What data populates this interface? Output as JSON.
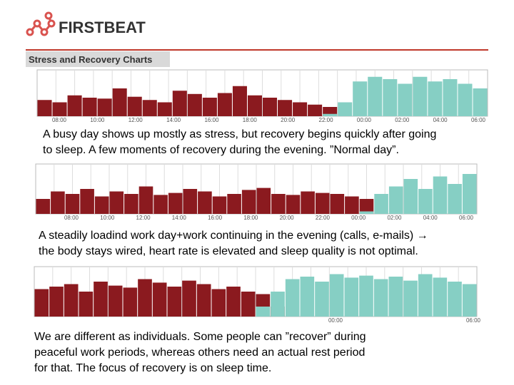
{
  "header": {
    "logo": "FIRSTBEAT",
    "banner": "Stress and Recovery Charts"
  },
  "chart_data": [
    {
      "type": "bar",
      "ylim": [
        0,
        100
      ],
      "xtick_labels": [
        "08:00",
        "10:00",
        "12:00",
        "14:00",
        "16:00",
        "18:00",
        "20:00",
        "22:00",
        "00:00",
        "02:00",
        "04:00",
        "06:00"
      ],
      "series": [
        {
          "name": "stress",
          "color": "#8b1a1f",
          "values": [
            35,
            30,
            45,
            40,
            38,
            60,
            42,
            35,
            30,
            55,
            48,
            40,
            50,
            65,
            45,
            40,
            35,
            30,
            25,
            20,
            0,
            0,
            0,
            0,
            0,
            0,
            0,
            0,
            0,
            0
          ]
        },
        {
          "name": "recovery",
          "color": "#86cfc4",
          "values": [
            0,
            0,
            0,
            0,
            0,
            0,
            0,
            0,
            0,
            0,
            0,
            0,
            0,
            0,
            0,
            0,
            0,
            0,
            0,
            5,
            30,
            75,
            85,
            80,
            70,
            85,
            75,
            80,
            70,
            60
          ]
        }
      ]
    },
    {
      "type": "bar",
      "ylim": [
        0,
        100
      ],
      "xtick_labels": [
        "08:00",
        "10:00",
        "12:00",
        "14:00",
        "16:00",
        "18:00",
        "20:00",
        "22:00",
        "00:00",
        "02:00",
        "04:00",
        "06:00"
      ],
      "series": [
        {
          "name": "stress",
          "color": "#8b1a1f",
          "values": [
            30,
            45,
            40,
            50,
            35,
            45,
            40,
            55,
            38,
            42,
            50,
            45,
            35,
            40,
            48,
            52,
            40,
            38,
            45,
            42,
            40,
            35,
            30,
            0,
            0,
            0,
            0,
            0,
            0,
            0
          ]
        },
        {
          "name": "recovery",
          "color": "#86cfc4",
          "values": [
            0,
            0,
            0,
            0,
            0,
            0,
            0,
            0,
            0,
            0,
            0,
            0,
            0,
            0,
            0,
            0,
            0,
            0,
            0,
            0,
            0,
            0,
            5,
            40,
            55,
            70,
            50,
            75,
            60,
            80
          ]
        }
      ]
    },
    {
      "type": "bar",
      "ylim": [
        0,
        100
      ],
      "xtick_labels": [
        "00:00",
        "06:00"
      ],
      "series": [
        {
          "name": "stress",
          "color": "#8b1a1f",
          "values": [
            55,
            60,
            65,
            50,
            70,
            62,
            58,
            75,
            68,
            60,
            72,
            65,
            55,
            60,
            50,
            45,
            20,
            0,
            0,
            0,
            0,
            0,
            0,
            0,
            0,
            0,
            0,
            0,
            0,
            0
          ]
        },
        {
          "name": "recovery",
          "color": "#86cfc4",
          "values": [
            0,
            0,
            0,
            0,
            0,
            0,
            0,
            0,
            0,
            0,
            0,
            0,
            0,
            0,
            0,
            20,
            50,
            75,
            80,
            70,
            85,
            78,
            82,
            75,
            80,
            72,
            85,
            78,
            70,
            65
          ]
        }
      ]
    }
  ],
  "captions": [
    [
      "A busy day shows up mostly as stress, but recovery begins quickly after going",
      "to sleep. A few moments of recovery during the evening. ”Normal day”."
    ],
    [
      "A steadily loadind work day+work continuing in the evening (calls, e-mails) → ",
      "the body stays wired, heart rate is elevated and sleep quality is not optimal."
    ],
    [
      "We are different as individuals. Some people can ”recover” during",
      "peaceful work periods, whereas others need an actual rest period",
      "for that. The focus of recovery is on sleep time."
    ]
  ]
}
